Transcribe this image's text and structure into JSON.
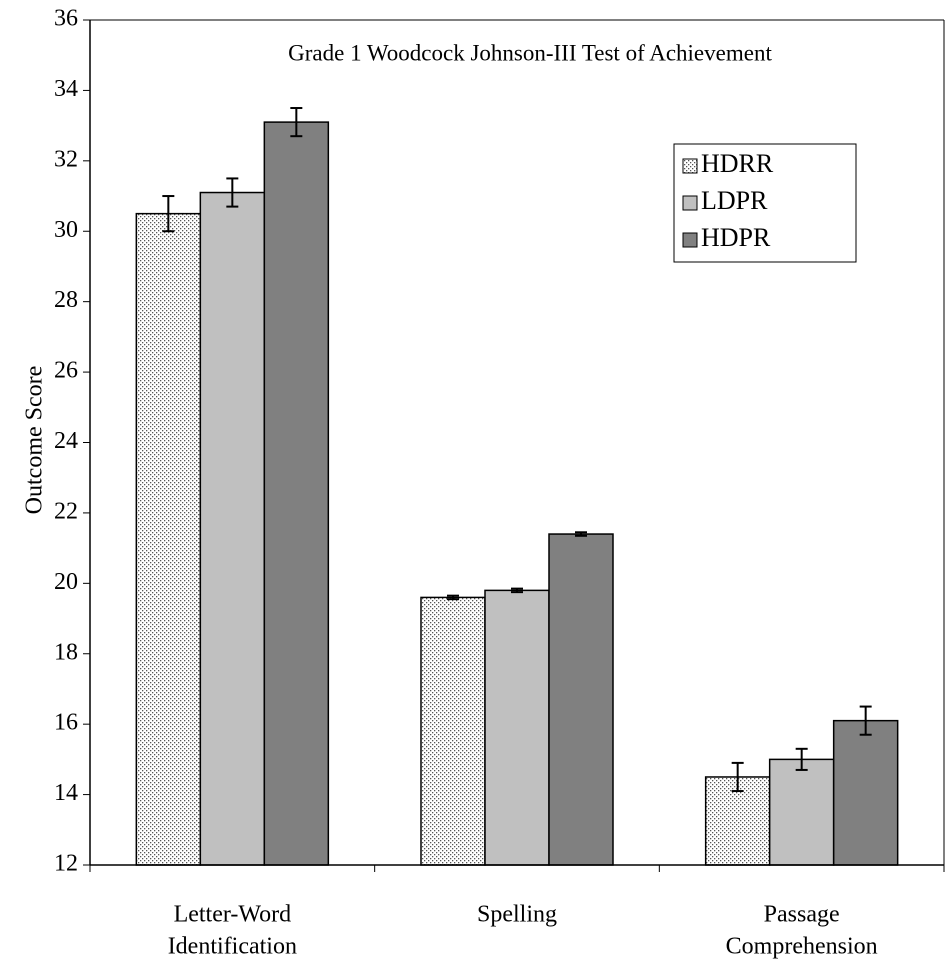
{
  "chart_data": {
    "type": "bar",
    "title": "Grade 1 Woodcock Johnson-III Test of Achievement",
    "y_label": "Outcome Score",
    "categories": [
      [
        "Letter-Word",
        "Identification"
      ],
      [
        "Spelling"
      ],
      [
        "Passage",
        "Comprehension"
      ]
    ],
    "series": [
      {
        "name": "HDRR",
        "color": "#ffffff",
        "pattern": "dots",
        "values": [
          30.5,
          19.6,
          14.5
        ],
        "errors": [
          0.5,
          0.05,
          0.4
        ]
      },
      {
        "name": "LDPR",
        "color": "#c0c0c0",
        "values": [
          31.1,
          19.8,
          15.0
        ],
        "errors": [
          0.4,
          0.05,
          0.3
        ]
      },
      {
        "name": "HDPR",
        "color": "#808080",
        "values": [
          33.1,
          21.4,
          16.1
        ],
        "errors": [
          0.4,
          0.05,
          0.4
        ]
      }
    ],
    "ylim": [
      12,
      36
    ],
    "yticks": [
      12,
      14,
      16,
      18,
      20,
      22,
      24,
      26,
      28,
      30,
      32,
      34,
      36
    ],
    "grid": false,
    "legend": "upper right"
  }
}
